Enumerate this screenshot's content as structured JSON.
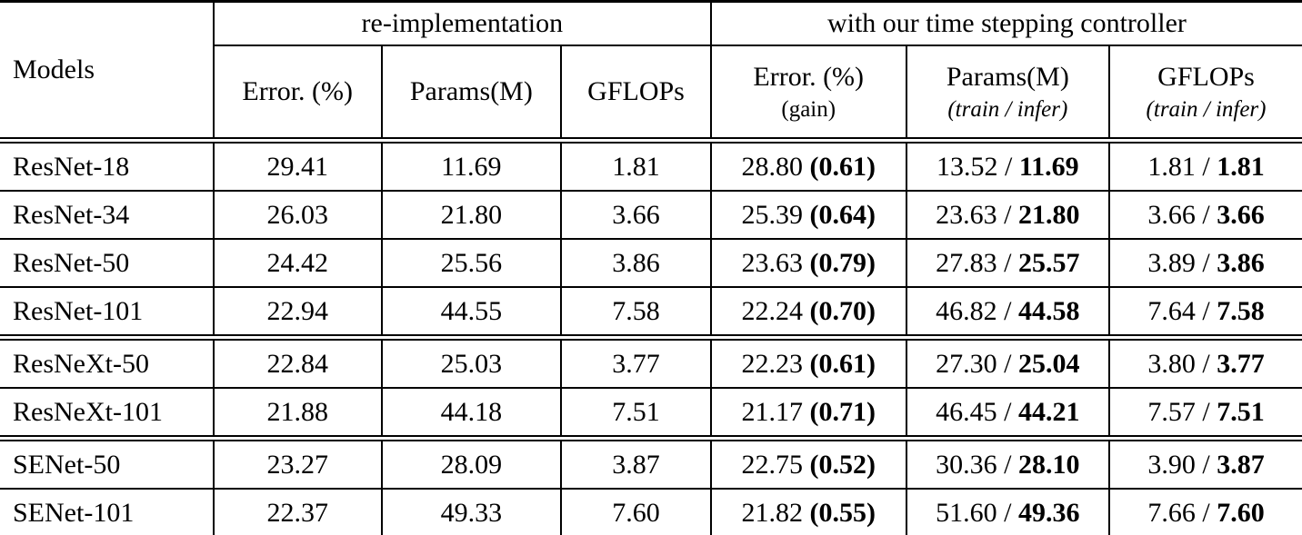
{
  "table": {
    "models_header": "Models",
    "groups": {
      "reimplementation": "re-implementation",
      "controller": "with our time stepping controller"
    },
    "subheaders": {
      "error": "Error. (%)",
      "params": "Params(M)",
      "gflops": "GFLOPs",
      "error2_line1": "Error. (%)",
      "error2_line2": "(gain)",
      "params2_line1": "Params(M)",
      "params2_line2": "(train / infer)",
      "gflops2_line1": "GFLOPs",
      "gflops2_line2": "(train / infer)"
    },
    "rows": [
      {
        "model": "ResNet-18",
        "error": "29.41",
        "params": "11.69",
        "gflops": "1.81",
        "error2": "28.80",
        "gain": "(0.61)",
        "params_train": "13.52 /",
        "params_infer": "11.69",
        "gflops_train": "1.81 /",
        "gflops_infer": "1.81"
      },
      {
        "model": "ResNet-34",
        "error": "26.03",
        "params": "21.80",
        "gflops": "3.66",
        "error2": "25.39",
        "gain": "(0.64)",
        "params_train": "23.63 /",
        "params_infer": "21.80",
        "gflops_train": "3.66 /",
        "gflops_infer": "3.66"
      },
      {
        "model": "ResNet-50",
        "error": "24.42",
        "params": "25.56",
        "gflops": "3.86",
        "error2": "23.63",
        "gain": "(0.79)",
        "params_train": "27.83 /",
        "params_infer": "25.57",
        "gflops_train": "3.89 /",
        "gflops_infer": "3.86"
      },
      {
        "model": "ResNet-101",
        "error": "22.94",
        "params": "44.55",
        "gflops": "7.58",
        "error2": "22.24",
        "gain": "(0.70)",
        "params_train": "46.82 /",
        "params_infer": "44.58",
        "gflops_train": "7.64 /",
        "gflops_infer": "7.58"
      },
      {
        "model": "ResNeXt-50",
        "error": "22.84",
        "params": "25.03",
        "gflops": "3.77",
        "error2": "22.23",
        "gain": "(0.61)",
        "params_train": "27.30 /",
        "params_infer": "25.04",
        "gflops_train": "3.80 /",
        "gflops_infer": "3.77"
      },
      {
        "model": "ResNeXt-101",
        "error": "21.88",
        "params": "44.18",
        "gflops": "7.51",
        "error2": "21.17",
        "gain": "(0.71)",
        "params_train": "46.45 /",
        "params_infer": "44.21",
        "gflops_train": "7.57 /",
        "gflops_infer": "7.51"
      },
      {
        "model": "SENet-50",
        "error": "23.27",
        "params": "28.09",
        "gflops": "3.87",
        "error2": "22.75",
        "gain": "(0.52)",
        "params_train": "30.36 /",
        "params_infer": "28.10",
        "gflops_train": "3.90 /",
        "gflops_infer": "3.87"
      },
      {
        "model": "SENet-101",
        "error": "22.37",
        "params": "49.33",
        "gflops": "7.60",
        "error2": "21.82",
        "gain": "(0.55)",
        "params_train": "51.60 /",
        "params_infer": "49.36",
        "gflops_train": "7.66 /",
        "gflops_infer": "7.60"
      }
    ]
  }
}
